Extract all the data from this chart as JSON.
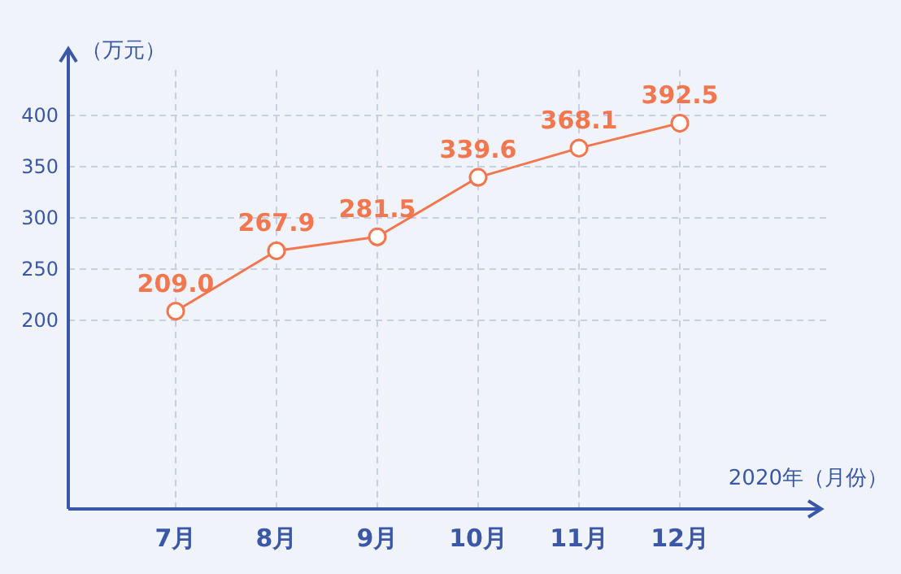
{
  "chart_data": {
    "type": "line",
    "ylabel": "（万元）",
    "xlabel": "2020年（月份）",
    "categories": [
      "7月",
      "8月",
      "9月",
      "10月",
      "11月",
      "12月"
    ],
    "series": [
      {
        "color": "#f4764f",
        "values": [
          209.0,
          267.9,
          281.5,
          339.6,
          368.1,
          392.5
        ],
        "value_labels": [
          "209.0",
          "267.9",
          "281.5",
          "339.6",
          "368.1",
          "392.5"
        ]
      }
    ],
    "ylim": [
      16,
      465
    ],
    "yticks": [
      200,
      250,
      300,
      350,
      400
    ],
    "grid": true,
    "marker": "circle"
  }
}
